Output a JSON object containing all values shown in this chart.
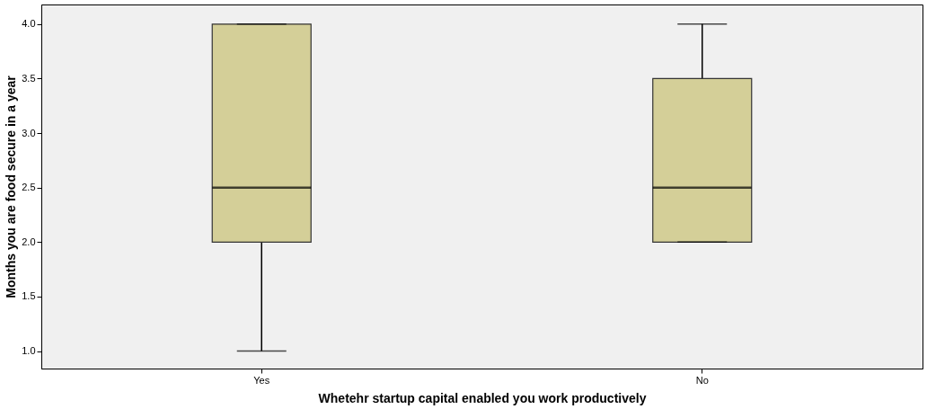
{
  "chart_data": {
    "type": "box",
    "xlabel": "Whetehr startup capital enabled you work productively",
    "ylabel": "Months you are food secure in a year",
    "categories": [
      "Yes",
      "No"
    ],
    "series": [
      {
        "color": "#d4cf98",
        "boxes": [
          {
            "low": 1.0,
            "q1": 2.0,
            "median": 2.5,
            "q3": 4.0,
            "high": 4.0
          },
          {
            "low": 2.0,
            "q1": 2.0,
            "median": 2.5,
            "q3": 3.5,
            "high": 4.0
          }
        ]
      }
    ],
    "ylim": [
      0.84,
      4.18
    ],
    "yticks": [
      {
        "value": 1.0,
        "label": "1.0"
      },
      {
        "value": 1.5,
        "label": "1.5"
      },
      {
        "value": 2.0,
        "label": "2.0"
      },
      {
        "value": 2.5,
        "label": "2.5"
      },
      {
        "value": 3.0,
        "label": "3.0"
      },
      {
        "value": 3.5,
        "label": "3.5"
      },
      {
        "value": 4.0,
        "label": "4.0"
      }
    ],
    "grid": false,
    "legend": false
  }
}
